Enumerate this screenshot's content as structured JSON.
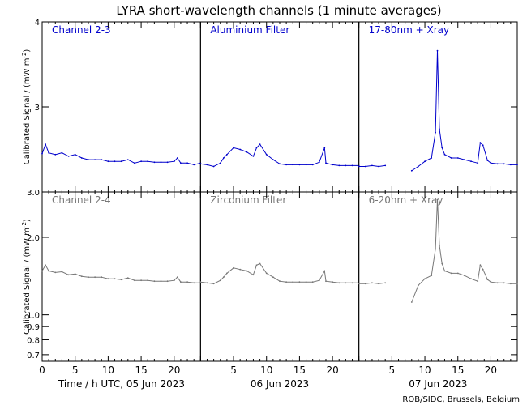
{
  "title": "LYRA short-wavelength channels (1 minute averages)",
  "ylabel": "Calibrated Signal / (mW m",
  "ylabel_sup": "-2",
  "ylabel_close": ")",
  "credit": "ROB/SIDC, Brussels, Belgium",
  "colors": {
    "top": "#0000cc",
    "bottom": "#777777",
    "axis": "#000000"
  },
  "chart_data": [
    {
      "type": "line",
      "row": "top",
      "yscale": "linear",
      "ylim": [
        2.0,
        4.0
      ],
      "yticks": [
        "3",
        "4"
      ],
      "grid": false,
      "days": [
        {
          "date": "05 Jun 2023",
          "panel_label": "Channel 2-3",
          "xlim": [
            0,
            24
          ],
          "xticks": [
            "0",
            "5",
            "10",
            "15",
            "20"
          ],
          "x": [
            0,
            0.5,
            1,
            2,
            3,
            4,
            5,
            6,
            7,
            8,
            9,
            10,
            11,
            12,
            13,
            14,
            15,
            16,
            17,
            18,
            19,
            20,
            20.5,
            21,
            22,
            23,
            24
          ],
          "y": [
            2.45,
            2.56,
            2.46,
            2.44,
            2.46,
            2.42,
            2.44,
            2.4,
            2.38,
            2.38,
            2.38,
            2.36,
            2.36,
            2.36,
            2.38,
            2.34,
            2.36,
            2.36,
            2.35,
            2.35,
            2.35,
            2.36,
            2.4,
            2.34,
            2.34,
            2.32,
            2.34
          ]
        },
        {
          "date": "06 Jun 2023",
          "panel_label": "Aluminium Filter",
          "xlim": [
            0,
            24
          ],
          "xticks": [
            "5",
            "10",
            "15",
            "20"
          ],
          "x": [
            0,
            1,
            2,
            3,
            3.5,
            4,
            5,
            6,
            7,
            8,
            8.5,
            9,
            10,
            11,
            12,
            13,
            14,
            15,
            16,
            17,
            18,
            18.8,
            19,
            20,
            21,
            22,
            23,
            24
          ],
          "y": [
            2.33,
            2.32,
            2.3,
            2.34,
            2.4,
            2.44,
            2.52,
            2.5,
            2.47,
            2.42,
            2.52,
            2.56,
            2.44,
            2.38,
            2.33,
            2.32,
            2.32,
            2.32,
            2.32,
            2.32,
            2.35,
            2.52,
            2.34,
            2.32,
            2.31,
            2.31,
            2.31,
            2.31
          ]
        },
        {
          "date": "07 Jun 2023",
          "panel_label": "17-80nm + Xray",
          "xlim": [
            0,
            24
          ],
          "xticks": [
            "5",
            "10",
            "15",
            "20"
          ],
          "x": [
            0,
            1,
            2,
            3,
            4,
            8,
            9,
            10,
            11,
            11.6,
            11.9,
            12.2,
            12.6,
            13,
            14,
            15,
            16,
            17,
            18,
            18.4,
            18.8,
            19.5,
            20,
            21,
            22,
            23,
            24
          ],
          "y": [
            2.3,
            2.3,
            2.31,
            2.3,
            2.31,
            2.25,
            2.3,
            2.36,
            2.4,
            2.7,
            3.66,
            2.74,
            2.52,
            2.44,
            2.4,
            2.4,
            2.38,
            2.36,
            2.34,
            2.58,
            2.55,
            2.37,
            2.34,
            2.33,
            2.33,
            2.32,
            2.32
          ]
        }
      ]
    },
    {
      "type": "line",
      "row": "bottom",
      "yscale": "log",
      "ylim": [
        0.66,
        3.0
      ],
      "yticks": [
        "0.7",
        "0.8",
        "0.9",
        "1.0",
        "2.0",
        "3.0"
      ],
      "grid": false,
      "days": [
        {
          "date": "05 Jun 2023",
          "panel_label": "Channel 2-4",
          "xlim": [
            0,
            24
          ],
          "xticks": [
            "0",
            "5",
            "10",
            "15",
            "20"
          ],
          "x": [
            0,
            0.5,
            1,
            2,
            3,
            4,
            5,
            6,
            7,
            8,
            9,
            10,
            11,
            12,
            13,
            14,
            15,
            16,
            17,
            18,
            19,
            20,
            20.5,
            21,
            22,
            23,
            24
          ],
          "y": [
            1.48,
            1.56,
            1.48,
            1.46,
            1.47,
            1.43,
            1.44,
            1.41,
            1.4,
            1.4,
            1.4,
            1.38,
            1.38,
            1.37,
            1.39,
            1.36,
            1.36,
            1.36,
            1.35,
            1.35,
            1.35,
            1.36,
            1.4,
            1.34,
            1.34,
            1.33,
            1.33
          ]
        },
        {
          "date": "06 Jun 2023",
          "panel_label": "Zirconium Filter",
          "xlim": [
            0,
            24
          ],
          "xticks": [
            "5",
            "10",
            "15",
            "20"
          ],
          "x": [
            0,
            1,
            2,
            3,
            3.5,
            4,
            5,
            6,
            7,
            8,
            8.5,
            9,
            10,
            11,
            12,
            13,
            14,
            15,
            16,
            17,
            18,
            18.8,
            19,
            20,
            21,
            22,
            23,
            24
          ],
          "y": [
            1.34,
            1.33,
            1.32,
            1.36,
            1.4,
            1.45,
            1.52,
            1.5,
            1.48,
            1.43,
            1.56,
            1.58,
            1.45,
            1.4,
            1.35,
            1.34,
            1.34,
            1.34,
            1.34,
            1.34,
            1.36,
            1.48,
            1.35,
            1.34,
            1.33,
            1.33,
            1.33,
            1.33
          ]
        },
        {
          "date": "07 Jun 2023",
          "panel_label": "6-20nm + Xray",
          "xlim": [
            0,
            24
          ],
          "xticks": [
            "5",
            "10",
            "15",
            "20"
          ],
          "x": [
            0,
            1,
            2,
            3,
            4,
            8,
            9,
            10,
            11,
            11.6,
            11.9,
            12.2,
            12.6,
            13,
            14,
            15,
            16,
            17,
            18,
            18.4,
            18.8,
            19.5,
            20,
            21,
            22,
            23,
            24
          ],
          "y": [
            1.32,
            1.32,
            1.33,
            1.32,
            1.33,
            1.12,
            1.3,
            1.38,
            1.42,
            1.8,
            2.8,
            1.86,
            1.58,
            1.48,
            1.45,
            1.45,
            1.42,
            1.38,
            1.35,
            1.56,
            1.5,
            1.37,
            1.34,
            1.33,
            1.33,
            1.32,
            1.32
          ]
        }
      ]
    }
  ],
  "xaxis": {
    "label_prefix": "Time / h UTC, "
  }
}
